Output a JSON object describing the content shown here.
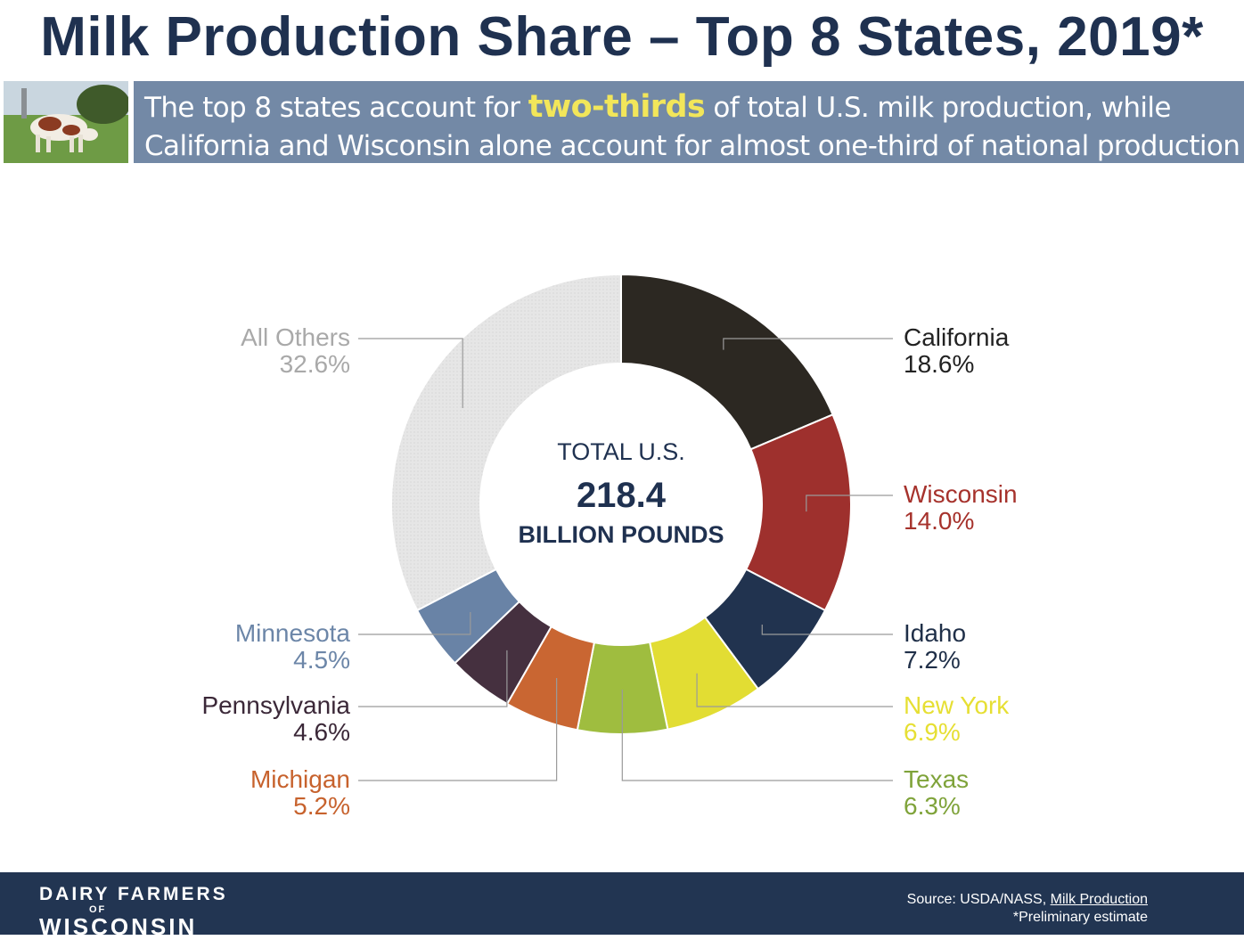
{
  "page": {
    "title": "Milk Production Share – Top 8 States, 2019*",
    "banner_line1_pre": "The top 8 states account for ",
    "banner_highlight": "two-thirds",
    "banner_line1_post": " of total U.S. milk production, while",
    "banner_line2": "California and Wisconsin alone account for almost one-third of national production"
  },
  "chart_data": {
    "type": "pie",
    "style": "donut",
    "center_label": {
      "line1": "TOTAL U.S.",
      "value": "218.4",
      "line3": "BILLION POUNDS"
    },
    "slices": [
      {
        "label": "California",
        "value": 18.6,
        "value_label": "18.6%",
        "color": "#2c2822",
        "label_color": "#222222"
      },
      {
        "label": "Wisconsin",
        "value": 14.0,
        "value_label": "14.0%",
        "color": "#9e302d",
        "label_color": "#a6322c"
      },
      {
        "label": "Idaho",
        "value": 7.2,
        "value_label": "7.2%",
        "color": "#21334f",
        "label_color": "#1f2f48"
      },
      {
        "label": "New York",
        "value": 6.9,
        "value_label": "6.9%",
        "color": "#e2dd33",
        "label_color": "#e6df33"
      },
      {
        "label": "Texas",
        "value": 6.3,
        "value_label": "6.3%",
        "color": "#9fbd3f",
        "label_color": "#7fa33a"
      },
      {
        "label": "Michigan",
        "value": 5.2,
        "value_label": "5.2%",
        "color": "#c96632",
        "label_color": "#c7622d"
      },
      {
        "label": "Pennsylvania",
        "value": 4.6,
        "value_label": "4.6%",
        "color": "#45303f",
        "label_color": "#3b2838"
      },
      {
        "label": "Minnesota",
        "value": 4.5,
        "value_label": "4.5%",
        "color": "#6983a6",
        "label_color": "#6c86a8"
      },
      {
        "label": "All Others",
        "value": 32.6,
        "value_label": "32.6%",
        "color": "#e4e4e4",
        "label_color": "#a9a9a9"
      }
    ]
  },
  "footer": {
    "logo_line1": "DAIRY FARMERS",
    "logo_line2": "OF",
    "logo_line3": "WISCONSIN",
    "source_prefix": "Source: USDA/NASS, ",
    "source_link": "Milk Production",
    "note": "*Preliminary estimate"
  }
}
